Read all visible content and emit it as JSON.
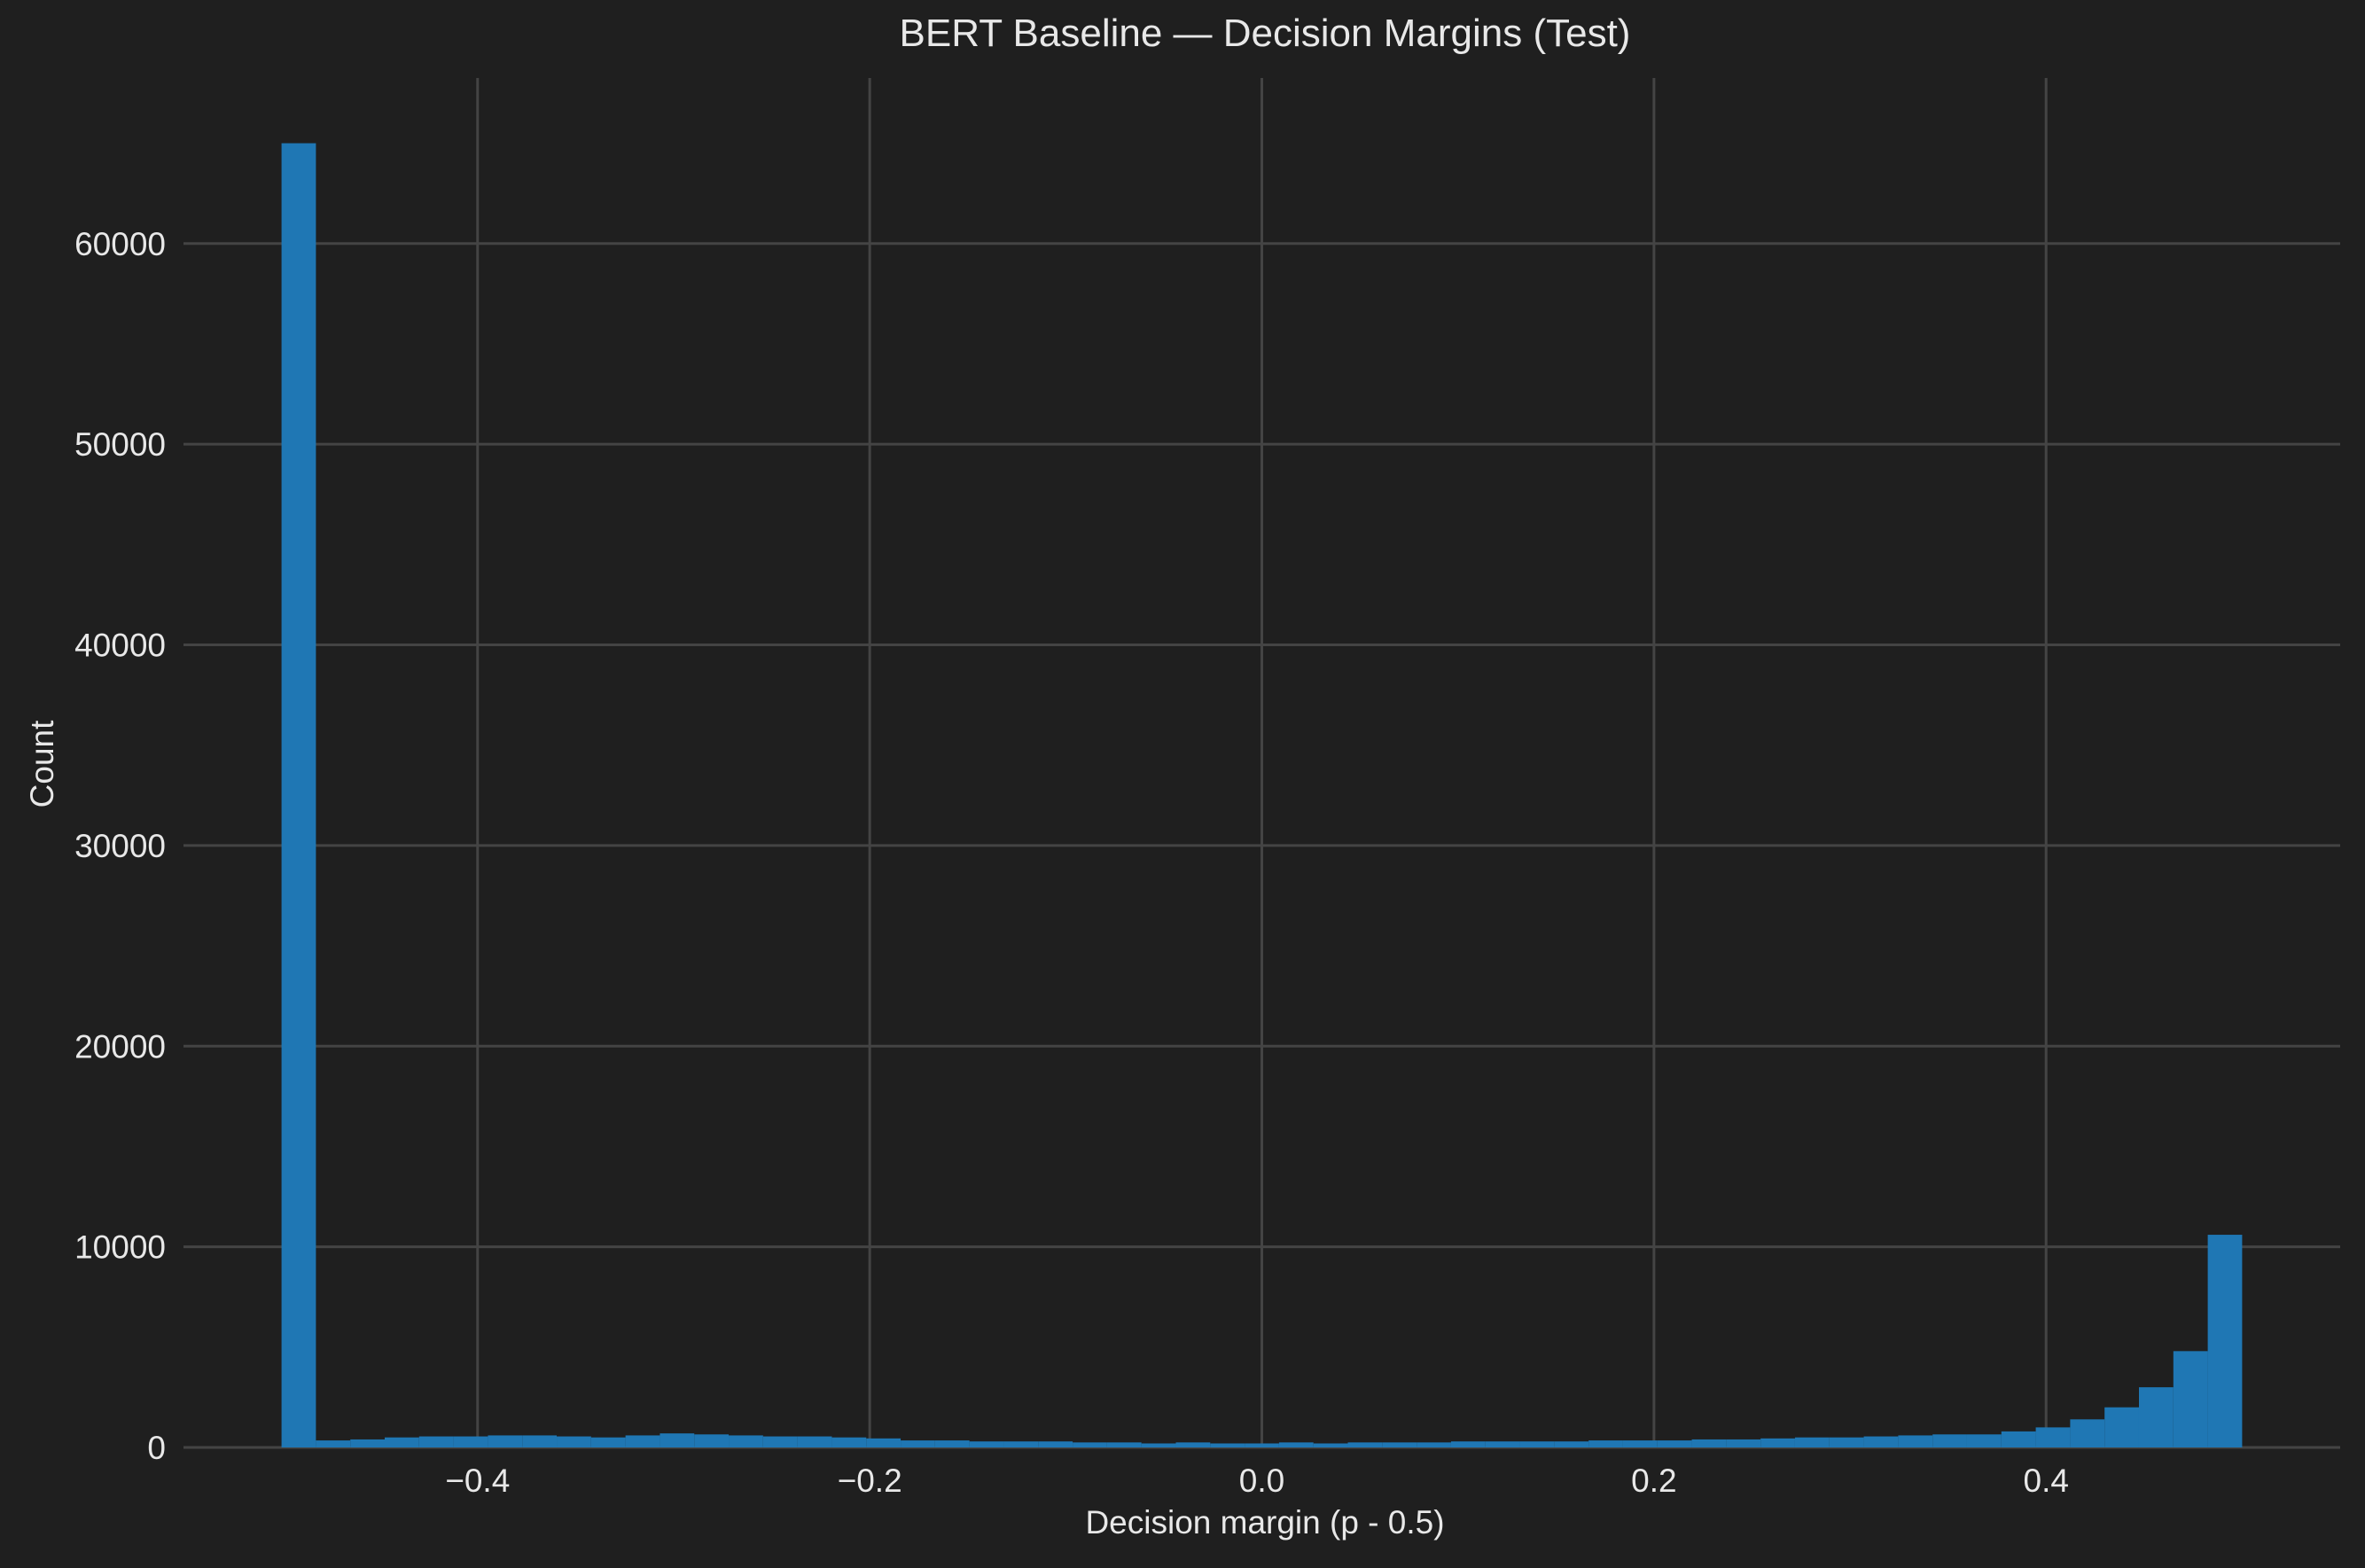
{
  "chart_data": {
    "type": "bar",
    "title": "BERT Baseline — Decision Margins (Test)",
    "xlabel": "Decision margin (p - 0.5)",
    "ylabel": "Count",
    "xlim": [
      -0.55,
      0.55
    ],
    "ylim": [
      0,
      68250
    ],
    "grid": true,
    "x_ticks": [
      -0.4,
      -0.2,
      0.0,
      0.2,
      0.4
    ],
    "x_tick_labels": [
      "−0.4",
      "−0.2",
      "0.0",
      "0.2",
      "0.4"
    ],
    "y_ticks": [
      0,
      10000,
      20000,
      30000,
      40000,
      50000,
      60000
    ],
    "y_tick_labels": [
      "0",
      "10000",
      "20000",
      "30000",
      "40000",
      "50000",
      "60000"
    ],
    "bin_start": -0.5,
    "bin_width": 0.02,
    "values": [
      65000,
      350,
      400,
      500,
      550,
      550,
      600,
      600,
      550,
      500,
      600,
      700,
      650,
      600,
      550,
      550,
      500,
      450,
      350,
      350,
      300,
      300,
      300,
      250,
      250,
      200,
      250,
      200,
      200,
      250,
      200,
      250,
      250,
      250,
      300,
      300,
      300,
      300,
      350,
      350,
      350,
      400,
      400,
      450,
      500,
      500,
      550,
      600,
      650,
      650,
      800,
      1000,
      1400,
      2000,
      3000,
      4800,
      10600
    ],
    "colors": {
      "background": "#1f1f1f",
      "bar": "#1f77b4",
      "grid": "#444444",
      "text": "#e8e8e8"
    }
  }
}
